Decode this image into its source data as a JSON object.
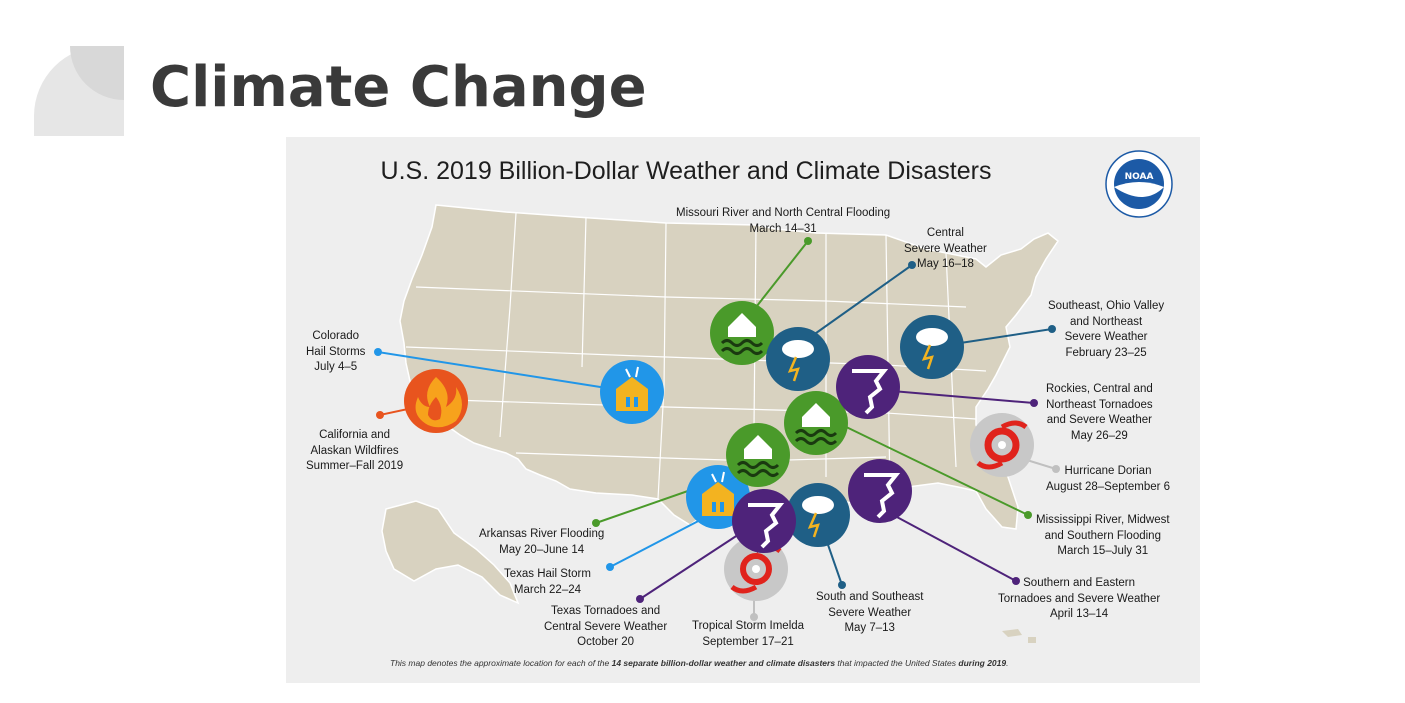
{
  "slide": {
    "title": "Climate Change"
  },
  "map": {
    "title": "U.S. 2019 Billion-Dollar Weather and Climate Disasters",
    "logo_text": "NOAA",
    "footnote": {
      "prefix": "This map denotes the approximate location for each of the ",
      "emphasis": "14 separate billion-dollar weather and climate disasters",
      "middle": " that impacted the United States ",
      "emphasis2": "during 2019",
      "suffix": "."
    },
    "colors": {
      "flood": "#4a9a2a",
      "severe": "#1f5f86",
      "hail": "#2196e8",
      "tornado": "#4e237a",
      "fire": "#e8541e",
      "hurricane": "#c0c0c0",
      "land": "#d8d2c0",
      "border": "#ffffff"
    },
    "events": [
      {
        "id": "missouri",
        "lines": [
          "Missouri River and North Central Flooding",
          "March 14–31"
        ]
      },
      {
        "id": "central",
        "lines": [
          "Central",
          "Severe Weather",
          "May 16–18"
        ]
      },
      {
        "id": "southeast-ohio",
        "lines": [
          "Southeast, Ohio Valley",
          "and Northeast",
          "Severe Weather",
          "February 23–25"
        ]
      },
      {
        "id": "colorado",
        "lines": [
          "Colorado",
          "Hail Storms",
          "July 4–5"
        ]
      },
      {
        "id": "california",
        "lines": [
          "California and",
          "Alaskan Wildfires",
          "Summer–Fall 2019"
        ]
      },
      {
        "id": "rockies",
        "lines": [
          "Rockies, Central and",
          "Northeast Tornadoes",
          "and Severe Weather",
          "May 26–29"
        ]
      },
      {
        "id": "dorian",
        "lines": [
          "Hurricane Dorian",
          "August 28–September 6"
        ]
      },
      {
        "id": "mississippi",
        "lines": [
          "Mississippi River, Midwest",
          "and Southern Flooding",
          "March 15–July 31"
        ]
      },
      {
        "id": "arkansas",
        "lines": [
          "Arkansas River Flooding",
          "May 20–June 14"
        ]
      },
      {
        "id": "texas-hail",
        "lines": [
          "Texas Hail Storm",
          "March 22–24"
        ]
      },
      {
        "id": "southern-eastern",
        "lines": [
          "Southern and Eastern",
          "Tornadoes and Severe Weather",
          "April 13–14"
        ]
      },
      {
        "id": "texas-tornadoes",
        "lines": [
          "Texas Tornadoes and",
          "Central Severe Weather",
          "October 20"
        ]
      },
      {
        "id": "imelda",
        "lines": [
          "Tropical Storm Imelda",
          "September 17–21"
        ]
      },
      {
        "id": "south-southeast",
        "lines": [
          "South and Southeast",
          "Severe Weather",
          "May 7–13"
        ]
      }
    ]
  }
}
